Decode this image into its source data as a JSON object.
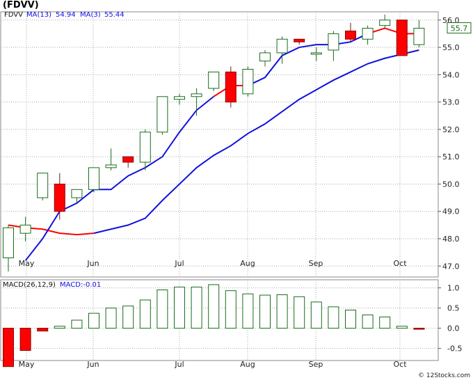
{
  "header": {
    "title": "(FDVV)"
  },
  "credit": "© 12Stocks.com",
  "legend_price": {
    "ticker": "FDVV",
    "ma13": "MA(13)",
    "ma13_val": "54.94",
    "ma3": "MA(3)",
    "ma3_val": "55.44"
  },
  "legend_macd": {
    "label": "MACD(26,12,9)",
    "value": "MACD:-0.01"
  },
  "last_price_tag": "55.7",
  "chart_data": [
    {
      "type": "candlestick",
      "x_tick_labels": [
        "May",
        "Jun",
        "Jul",
        "Aug",
        "Sep",
        "Oct"
      ],
      "y_tick_labels": [
        "47.0",
        "48.0",
        "49.0",
        "50.0",
        "51.0",
        "52.0",
        "53.0",
        "54.0",
        "55.0",
        "56.0"
      ],
      "ylim": [
        46.6,
        56.3
      ],
      "grid": true,
      "colors": {
        "up": "#1a6b1a",
        "down": "#ff0000",
        "ma13": "#1010e0",
        "ma3": "#ff0000",
        "ma3_up": "#1010e0"
      },
      "candles": [
        {
          "open": 47.3,
          "high": 48.5,
          "low": 46.8,
          "close": 48.4
        },
        {
          "open": 48.2,
          "high": 48.8,
          "low": 47.9,
          "close": 48.5
        },
        {
          "open": 49.5,
          "high": 50.4,
          "low": 49.4,
          "close": 50.4
        },
        {
          "open": 50.0,
          "high": 50.4,
          "low": 48.7,
          "close": 49.0
        },
        {
          "open": 49.5,
          "high": 49.8,
          "low": 49.3,
          "close": 49.8
        },
        {
          "open": 49.8,
          "high": 50.6,
          "low": 49.7,
          "close": 50.6
        },
        {
          "open": 50.6,
          "high": 51.3,
          "low": 50.5,
          "close": 50.7
        },
        {
          "open": 51.0,
          "high": 51.0,
          "low": 50.6,
          "close": 50.8
        },
        {
          "open": 50.8,
          "high": 52.0,
          "low": 50.5,
          "close": 51.9
        },
        {
          "open": 51.9,
          "high": 53.2,
          "low": 51.8,
          "close": 53.2
        },
        {
          "open": 53.1,
          "high": 53.3,
          "low": 52.9,
          "close": 53.2
        },
        {
          "open": 53.2,
          "high": 53.5,
          "low": 52.5,
          "close": 53.3
        },
        {
          "open": 53.5,
          "high": 54.1,
          "low": 53.4,
          "close": 54.1
        },
        {
          "open": 54.1,
          "high": 54.3,
          "low": 52.8,
          "close": 53.0
        },
        {
          "open": 53.3,
          "high": 54.3,
          "low": 53.2,
          "close": 54.2
        },
        {
          "open": 54.5,
          "high": 54.9,
          "low": 54.3,
          "close": 54.8
        },
        {
          "open": 54.8,
          "high": 55.4,
          "low": 54.4,
          "close": 55.3
        },
        {
          "open": 55.3,
          "high": 55.3,
          "low": 55.1,
          "close": 55.2
        },
        {
          "open": 54.8,
          "high": 55.0,
          "low": 54.5,
          "close": 54.8
        },
        {
          "open": 54.9,
          "high": 55.6,
          "low": 54.5,
          "close": 55.5
        },
        {
          "open": 55.6,
          "high": 55.9,
          "low": 55.2,
          "close": 55.3
        },
        {
          "open": 55.3,
          "high": 55.8,
          "low": 55.1,
          "close": 55.7
        },
        {
          "open": 55.8,
          "high": 56.2,
          "low": 55.7,
          "close": 56.0
        },
        {
          "open": 56.0,
          "high": 56.0,
          "low": 54.7,
          "close": 54.7
        },
        {
          "open": 55.1,
          "high": 56.0,
          "low": 55.0,
          "close": 55.7
        }
      ],
      "ma13": [
        null,
        null,
        null,
        null,
        null,
        null,
        null,
        null,
        null,
        null,
        null,
        null,
        null,
        48.2,
        48.3,
        48.5,
        48.6,
        48.9,
        49.4,
        49.9,
        50.5,
        51.0,
        51.4,
        51.9,
        52.2
      ],
      "ma13_continued": [
        52.6,
        53.0,
        53.3,
        53.6,
        53.9,
        54.2,
        54.4,
        54.6,
        54.7,
        54.9
      ],
      "ma3": [
        null,
        null,
        48.5,
        48.4,
        48.3,
        48.2,
        48.2
      ],
      "ma3_upper": [
        null,
        47.2,
        48.0,
        49.0,
        49.3,
        49.8,
        49.8,
        50.3,
        50.6,
        51.0,
        51.9,
        52.7,
        53.2,
        53.6,
        53.6,
        53.9,
        54.7,
        55.0,
        55.1,
        55.1,
        55.2,
        55.5,
        55.7,
        55.5,
        55.5
      ]
    },
    {
      "type": "bar",
      "name": "MACD(26,12,9)",
      "y_tick_labels": [
        "1.0",
        "0.5",
        "0.0",
        "-0.5"
      ],
      "ylim": [
        -0.8,
        1.2
      ],
      "values": [
        -0.95,
        -0.55,
        -0.07,
        0.05,
        0.2,
        0.37,
        0.5,
        0.55,
        0.7,
        0.95,
        1.02,
        1.02,
        1.08,
        0.93,
        0.85,
        0.82,
        0.83,
        0.78,
        0.65,
        0.53,
        0.45,
        0.33,
        0.28,
        0.05,
        -0.01
      ],
      "colors": {
        "positive": "#1a6b1a",
        "negative": "#ff0000"
      }
    }
  ]
}
